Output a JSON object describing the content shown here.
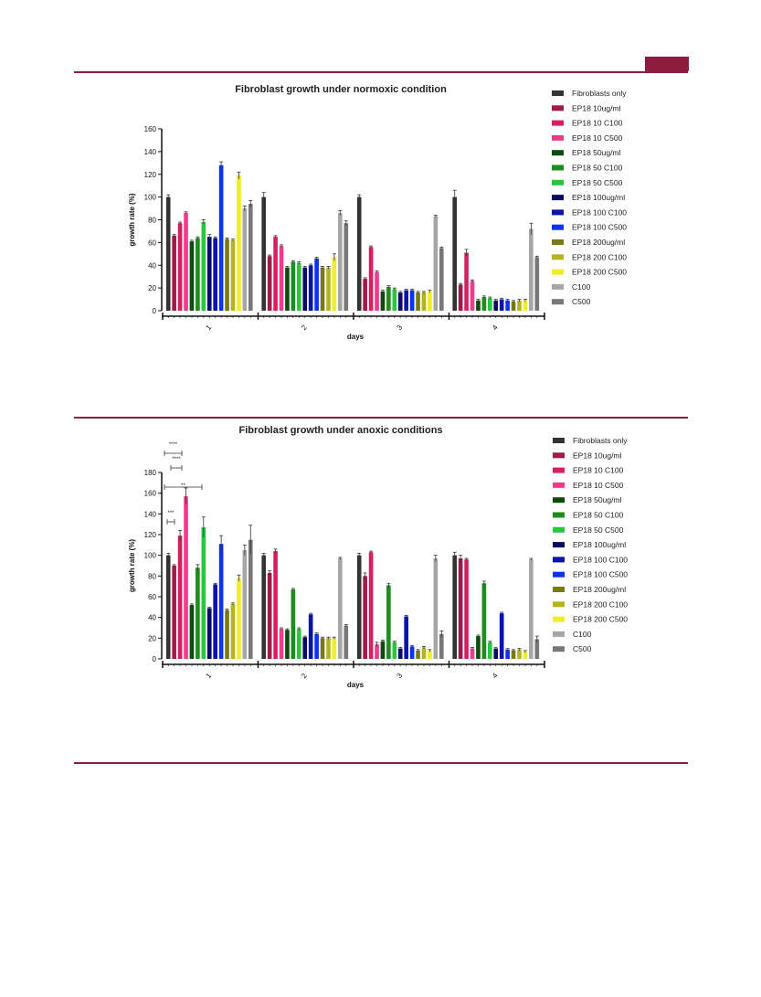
{
  "page": {
    "rule_color": "#8e1b40"
  },
  "series_colors": [
    "#333333",
    "#a01a4a",
    "#d42060",
    "#f03c8c",
    "#0f4a0f",
    "#1e8c1e",
    "#28c83c",
    "#0a0a64",
    "#0a14aa",
    "#0a32f0",
    "#7a7a14",
    "#b4b41e",
    "#f0ee28",
    "#a6a6a6",
    "#787878"
  ],
  "chart_data": [
    {
      "type": "bar",
      "title": "Fibroblast growth under normoxic condition",
      "xlabel": "days",
      "ylabel": "growth rate (%)",
      "ylim": [
        0,
        160
      ],
      "yticks": [
        0,
        20,
        40,
        60,
        80,
        100,
        120,
        140,
        160
      ],
      "categories": [
        "1",
        "2",
        "3",
        "4"
      ],
      "legend_position": "right",
      "grid": false,
      "series": [
        {
          "name": "Fibroblasts only",
          "values": [
            100,
            100,
            100,
            100
          ],
          "errors": [
            2,
            4,
            2,
            6
          ]
        },
        {
          "name": "EP18 10ug/ml",
          "values": [
            66,
            48,
            28,
            23
          ],
          "errors": [
            1,
            1,
            1,
            1
          ]
        },
        {
          "name": "EP18 10 C100",
          "values": [
            77,
            65,
            56,
            51
          ],
          "errors": [
            1,
            1,
            1,
            3
          ]
        },
        {
          "name": "EP18 10 C500",
          "values": [
            86,
            57,
            34,
            26
          ],
          "errors": [
            1,
            1,
            1,
            1
          ]
        },
        {
          "name": "EP18 50ug/ml",
          "values": [
            61,
            38,
            17,
            9
          ],
          "errors": [
            1,
            1,
            1,
            1
          ]
        },
        {
          "name": "EP18 50 C100",
          "values": [
            64,
            43,
            21,
            12
          ],
          "errors": [
            1,
            1,
            1,
            1
          ]
        },
        {
          "name": "EP18 50 C500",
          "values": [
            78,
            42,
            19,
            11
          ],
          "errors": [
            2,
            1,
            1,
            1
          ]
        },
        {
          "name": "EP18 100ug/ml",
          "values": [
            65,
            38,
            16,
            9
          ],
          "errors": [
            2,
            1,
            1,
            1
          ]
        },
        {
          "name": "EP18 100 C100",
          "values": [
            64,
            40,
            18,
            10
          ],
          "errors": [
            1,
            1,
            1,
            1
          ]
        },
        {
          "name": "EP18 100 C500",
          "values": [
            128,
            46,
            18,
            9
          ],
          "errors": [
            3,
            1,
            1,
            1
          ]
        },
        {
          "name": "EP18 200ug/ml",
          "values": [
            63,
            38,
            16,
            8
          ],
          "errors": [
            1,
            1,
            1,
            1
          ]
        },
        {
          "name": "EP18 200 C100",
          "values": [
            62,
            38,
            16,
            9
          ],
          "errors": [
            1,
            1,
            1,
            1
          ]
        },
        {
          "name": "EP18 200 C500",
          "values": [
            119,
            47,
            17,
            9
          ],
          "errors": [
            3,
            3,
            1,
            1
          ]
        },
        {
          "name": "C100",
          "values": [
            90,
            86,
            83,
            72
          ],
          "errors": [
            2,
            2,
            1,
            5
          ]
        },
        {
          "name": "C500",
          "values": [
            94,
            77,
            55,
            47
          ],
          "errors": [
            3,
            2,
            1,
            1
          ]
        }
      ]
    },
    {
      "type": "bar",
      "title": "Fibroblast growth under anoxic conditions",
      "xlabel": "days",
      "ylabel": "growth rate (%)",
      "ylim": [
        0,
        180
      ],
      "yticks": [
        0,
        20,
        40,
        60,
        80,
        100,
        120,
        140,
        160,
        180
      ],
      "categories": [
        "1",
        "2",
        "3",
        "4"
      ],
      "legend_position": "right",
      "grid": false,
      "annotations": [
        "****",
        "****",
        "**",
        "***"
      ],
      "series": [
        {
          "name": "Fibroblasts only",
          "values": [
            100,
            100,
            100,
            100
          ],
          "errors": [
            2,
            2,
            2,
            3
          ]
        },
        {
          "name": "EP18 10ug/ml",
          "values": [
            90,
            83,
            80,
            97
          ],
          "errors": [
            1,
            2,
            3,
            3
          ]
        },
        {
          "name": "EP18 10 C100",
          "values": [
            119,
            104,
            103,
            96
          ],
          "errors": [
            5,
            2,
            1,
            1
          ]
        },
        {
          "name": "EP18 10 C500",
          "values": [
            157,
            29,
            14,
            10
          ],
          "errors": [
            8,
            1,
            2,
            1
          ]
        },
        {
          "name": "EP18 50ug/ml",
          "values": [
            52,
            28,
            17,
            22
          ],
          "errors": [
            1,
            1,
            1,
            1
          ]
        },
        {
          "name": "EP18 50 C100",
          "values": [
            88,
            67,
            71,
            73
          ],
          "errors": [
            3,
            1,
            2,
            2
          ]
        },
        {
          "name": "EP18 50 C500",
          "values": [
            127,
            29,
            16,
            16
          ],
          "errors": [
            10,
            1,
            1,
            1
          ]
        },
        {
          "name": "EP18 100ug/ml",
          "values": [
            49,
            21,
            10,
            10
          ],
          "errors": [
            1,
            1,
            1,
            1
          ]
        },
        {
          "name": "EP18 100 C100",
          "values": [
            72,
            43,
            41,
            44
          ],
          "errors": [
            1,
            1,
            1,
            1
          ]
        },
        {
          "name": "EP18 100 C500",
          "values": [
            111,
            24,
            12,
            9
          ],
          "errors": [
            8,
            1,
            1,
            1
          ]
        },
        {
          "name": "EP18 200ug/ml",
          "values": [
            47,
            20,
            8,
            8
          ],
          "errors": [
            1,
            1,
            1,
            1
          ]
        },
        {
          "name": "EP18 200 C100",
          "values": [
            53,
            20,
            11,
            9
          ],
          "errors": [
            1,
            1,
            1,
            1
          ]
        },
        {
          "name": "EP18 200 C500",
          "values": [
            78,
            20,
            8,
            7
          ],
          "errors": [
            3,
            1,
            1,
            1
          ]
        },
        {
          "name": "C100",
          "values": [
            105,
            97,
            97,
            96
          ],
          "errors": [
            5,
            1,
            3,
            1
          ]
        },
        {
          "name": "C500",
          "values": [
            115,
            32,
            24,
            19
          ],
          "errors": [
            14,
            1,
            3,
            3
          ]
        }
      ]
    }
  ]
}
